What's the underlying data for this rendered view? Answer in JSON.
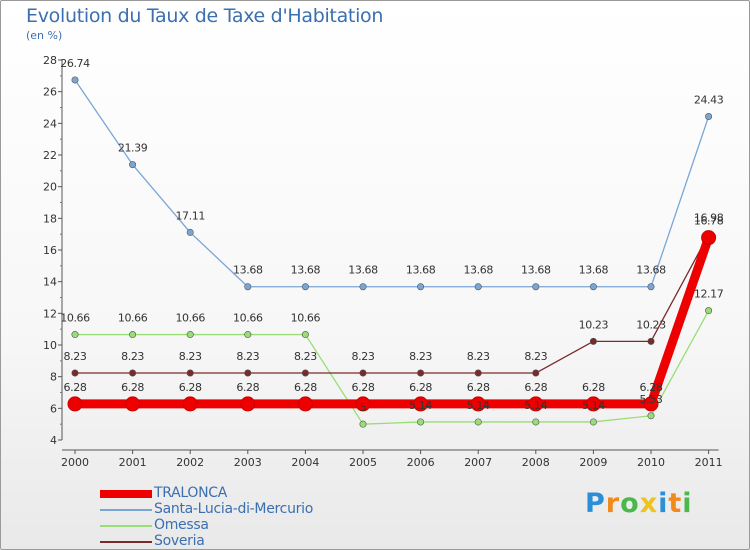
{
  "header": {
    "title": "Evolution du Taux de Taxe d'Habitation",
    "subtitle": "(en %)"
  },
  "chart_data": {
    "type": "line",
    "x": [
      "2000",
      "2001",
      "2002",
      "2003",
      "2004",
      "2005",
      "2006",
      "2007",
      "2008",
      "2009",
      "2010",
      "2011"
    ],
    "ylim": [
      4,
      28
    ],
    "yticks": [
      4,
      6,
      8,
      10,
      12,
      14,
      16,
      18,
      20,
      22,
      24,
      26,
      28
    ],
    "grid": false,
    "legend_position": "bottom-left",
    "series": [
      {
        "name": "TRALONCA",
        "color": "#ee0000",
        "values": [
          6.28,
          6.28,
          6.28,
          6.28,
          6.28,
          6.28,
          6.28,
          6.28,
          6.28,
          6.28,
          6.28,
          16.78
        ],
        "labels": [
          "6.28",
          "6.28",
          "6.28",
          "6.28",
          "6.28",
          "6.28",
          "6.28",
          "6.28",
          "6.28",
          "6.28",
          "6.28",
          "16.78"
        ]
      },
      {
        "name": "Santa-Lucia-di-Mercurio",
        "color": "#7aa6d6",
        "values": [
          26.74,
          21.39,
          17.11,
          13.68,
          13.68,
          13.68,
          13.68,
          13.68,
          13.68,
          13.68,
          13.68,
          24.43
        ],
        "labels": [
          "26.74",
          "21.39",
          "17.11",
          "13.68",
          "13.68",
          "13.68",
          "13.68",
          "13.68",
          "13.68",
          "13.68",
          "13.68",
          "24.43"
        ]
      },
      {
        "name": "Omessa",
        "color": "#99dd77",
        "values": [
          10.66,
          10.66,
          10.66,
          10.66,
          10.66,
          5,
          5.14,
          5.14,
          5.14,
          5.14,
          5.53,
          12.17
        ],
        "labels": [
          "10.66",
          "10.66",
          "10.66",
          "10.66",
          "10.66",
          "5",
          "5.14",
          "5.14",
          "5.14",
          "5.14",
          "5.53",
          "12.17"
        ]
      },
      {
        "name": "Soveria",
        "color": "#7a2a2a",
        "values": [
          8.23,
          8.23,
          8.23,
          8.23,
          8.23,
          8.23,
          8.23,
          8.23,
          8.23,
          10.23,
          10.23,
          16.98
        ],
        "labels": [
          "8.23",
          "8.23",
          "8.23",
          "8.23",
          "8.23",
          "8.23",
          "8.23",
          "8.23",
          "8.23",
          "10.23",
          "10.23",
          "16.98"
        ]
      }
    ]
  },
  "logo": {
    "letters": [
      "P",
      "r",
      "o",
      "x",
      "i",
      "t",
      "i"
    ],
    "colors": [
      "#2b8fd8",
      "#f08a1c",
      "#4bb84b",
      "#f0c21c",
      "#2b8fd8",
      "#f08a1c",
      "#4bb84b"
    ]
  }
}
